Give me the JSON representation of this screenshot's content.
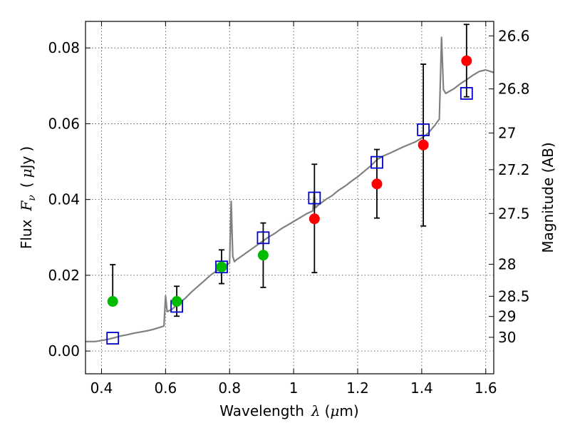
{
  "chart_data": {
    "type": "scatter",
    "xlabel": {
      "text": "Wavelength",
      "symbol": "λ",
      "unit_open": "(",
      "unit_mu": "μ",
      "unit_rest": "m)"
    },
    "ylabel": {
      "text": "Flux",
      "symbol": "F",
      "subscript": "ν",
      "unit_open": "(",
      "unit_mu": "μ",
      "unit_rest": "Jy",
      "unit_close": ")"
    },
    "y2label": "Magnitude (AB)",
    "xlim": [
      0.35,
      1.625
    ],
    "ylim": [
      -0.006,
      0.087
    ],
    "grid": true,
    "x_ticks": [
      0.4,
      0.6,
      0.8,
      1.0,
      1.2,
      1.4,
      1.6
    ],
    "x_tick_labels": [
      "0.4",
      "0.6",
      "0.8",
      "1",
      "1.2",
      "1.4",
      "1.6"
    ],
    "y_ticks": [
      0.0,
      0.02,
      0.04,
      0.06,
      0.08
    ],
    "y_tick_labels": [
      "0.00",
      "0.02",
      "0.04",
      "0.06",
      "0.08"
    ],
    "y2_ticks": [
      26.6,
      26.8,
      27.0,
      27.2,
      27.5,
      28.0,
      28.5,
      29.0,
      30.0
    ],
    "y2_tick_labels": [
      "26.6",
      "26.8",
      "27",
      "27.2",
      "27.5",
      "28",
      "28.5",
      "29",
      "30"
    ],
    "colors": {
      "spectrum": "#808080",
      "green": "#00bb00",
      "red": "#ff0000",
      "model": "#0000cc",
      "error": "#000000"
    },
    "spectrum": {
      "x": [
        0.35,
        0.38,
        0.4,
        0.42,
        0.44,
        0.46,
        0.48,
        0.5,
        0.52,
        0.54,
        0.56,
        0.58,
        0.595,
        0.6,
        0.605,
        0.62,
        0.64,
        0.66,
        0.68,
        0.7,
        0.72,
        0.74,
        0.76,
        0.78,
        0.8,
        0.805,
        0.81,
        0.815,
        0.82,
        0.84,
        0.86,
        0.88,
        0.9,
        0.92,
        0.94,
        0.96,
        0.98,
        1.0,
        1.02,
        1.04,
        1.06,
        1.064,
        1.068,
        1.075,
        1.1,
        1.12,
        1.14,
        1.16,
        1.18,
        1.2,
        1.22,
        1.24,
        1.26,
        1.28,
        1.3,
        1.32,
        1.34,
        1.36,
        1.38,
        1.4,
        1.42,
        1.44,
        1.455,
        1.462,
        1.468,
        1.475,
        1.5,
        1.52,
        1.54,
        1.56,
        1.58,
        1.6,
        1.625
      ],
      "y": [
        0.0025,
        0.0025,
        0.0028,
        0.0031,
        0.0035,
        0.004,
        0.0043,
        0.0047,
        0.005,
        0.0053,
        0.0057,
        0.0062,
        0.0066,
        0.0145,
        0.0104,
        0.011,
        0.0125,
        0.0138,
        0.0155,
        0.017,
        0.0185,
        0.02,
        0.0212,
        0.0222,
        0.0232,
        0.0395,
        0.025,
        0.0236,
        0.024,
        0.0252,
        0.0264,
        0.0276,
        0.0288,
        0.03,
        0.031,
        0.0322,
        0.0332,
        0.0342,
        0.0352,
        0.0362,
        0.037,
        0.042,
        0.0378,
        0.0384,
        0.04,
        0.041,
        0.0424,
        0.0435,
        0.0448,
        0.046,
        0.0474,
        0.0488,
        0.0505,
        0.0515,
        0.0522,
        0.053,
        0.0538,
        0.0545,
        0.0552,
        0.0562,
        0.0575,
        0.0595,
        0.0612,
        0.0828,
        0.069,
        0.068,
        0.0692,
        0.0705,
        0.0716,
        0.0728,
        0.0738,
        0.0742,
        0.0735
      ]
    },
    "series": [
      {
        "marker": "circle",
        "points": [
          {
            "x": 0.435,
            "y": 0.0131,
            "color": "green",
            "err_low": 0.0131,
            "err_high": 0.0228
          },
          {
            "x": 0.635,
            "y": 0.0131,
            "color": "green",
            "err_low": 0.0092,
            "err_high": 0.0171
          },
          {
            "x": 0.775,
            "y": 0.0222,
            "color": "green",
            "err_low": 0.0178,
            "err_high": 0.0267
          },
          {
            "x": 0.905,
            "y": 0.0253,
            "color": "green",
            "err_low": 0.0168,
            "err_high": 0.0338
          },
          {
            "x": 1.065,
            "y": 0.0349,
            "color": "red",
            "err_low": 0.0207,
            "err_high": 0.0493
          },
          {
            "x": 1.26,
            "y": 0.0441,
            "color": "red",
            "err_low": 0.0351,
            "err_high": 0.0532
          },
          {
            "x": 1.405,
            "y": 0.0544,
            "color": "red",
            "err_low": 0.033,
            "err_high": 0.0757
          },
          {
            "x": 1.54,
            "y": 0.0766,
            "color": "red",
            "err_low": 0.0671,
            "err_high": 0.0862
          }
        ]
      },
      {
        "marker": "open-square",
        "points": [
          {
            "x": 0.435,
            "y": 0.0034
          },
          {
            "x": 0.635,
            "y": 0.0118
          },
          {
            "x": 0.775,
            "y": 0.0222
          },
          {
            "x": 0.905,
            "y": 0.0299
          },
          {
            "x": 1.065,
            "y": 0.0404
          },
          {
            "x": 1.26,
            "y": 0.0498
          },
          {
            "x": 1.405,
            "y": 0.0584
          },
          {
            "x": 1.54,
            "y": 0.068
          }
        ]
      }
    ]
  }
}
